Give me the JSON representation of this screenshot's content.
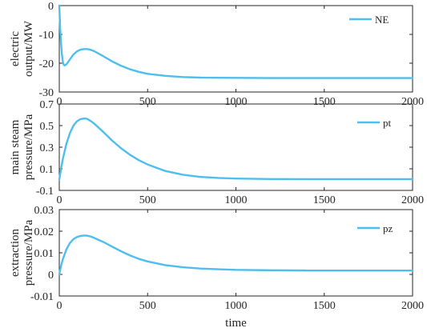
{
  "chart_data": [
    {
      "type": "line",
      "ylabel_lines": [
        "electric",
        "output/MW"
      ],
      "xlim": [
        0,
        2000
      ],
      "ylim": [
        -30,
        0
      ],
      "xticks": [
        0,
        500,
        1000,
        1500,
        2000
      ],
      "yticks": [
        -30,
        -20,
        -10,
        0
      ],
      "xtick_labels": [
        "0",
        "500",
        "1000",
        "1500",
        "2000"
      ],
      "ytick_labels": [
        "-30",
        "-20",
        "-10",
        "0"
      ],
      "legend_position": "top-right",
      "series": [
        {
          "name": "NE",
          "color": "#4DBEEE",
          "x": [
            0,
            2,
            5,
            10,
            15,
            20,
            25,
            30,
            40,
            50,
            60,
            80,
            100,
            120,
            140,
            160,
            180,
            200,
            250,
            300,
            350,
            400,
            450,
            500,
            600,
            700,
            800,
            900,
            1000,
            1200,
            1400,
            1600,
            1800,
            2000
          ],
          "y": [
            0,
            -3,
            -8,
            -13,
            -17,
            -19.5,
            -20.5,
            -20.8,
            -20.4,
            -19.6,
            -18.7,
            -17,
            -15.9,
            -15.3,
            -15.1,
            -15.1,
            -15.4,
            -15.9,
            -17.6,
            -19.4,
            -20.9,
            -22.1,
            -23,
            -23.7,
            -24.4,
            -24.8,
            -25,
            -25.05,
            -25.1,
            -25.15,
            -25.15,
            -25.15,
            -25.15,
            -25.15
          ]
        }
      ]
    },
    {
      "type": "line",
      "ylabel_lines": [
        "main steam",
        "pressure/MPa"
      ],
      "xlim": [
        0,
        2000
      ],
      "ylim": [
        -0.1,
        0.7
      ],
      "xticks": [
        0,
        500,
        1000,
        1500,
        2000
      ],
      "yticks": [
        -0.1,
        0.1,
        0.3,
        0.5,
        0.7
      ],
      "xtick_labels": [
        "0",
        "500",
        "1000",
        "1500",
        "2000"
      ],
      "ytick_labels": [
        "-0.1",
        "0.1",
        "0.3",
        "0.5",
        "0.7"
      ],
      "legend_position": "top-right",
      "series": [
        {
          "name": "pt",
          "color": "#4DBEEE",
          "x": [
            0,
            10,
            20,
            40,
            60,
            80,
            100,
            120,
            140,
            150,
            160,
            180,
            200,
            250,
            300,
            350,
            400,
            450,
            500,
            600,
            700,
            800,
            900,
            1000,
            1200,
            1400,
            1600,
            1800,
            2000
          ],
          "y": [
            0.0,
            0.1,
            0.19,
            0.33,
            0.43,
            0.5,
            0.54,
            0.56,
            0.565,
            0.565,
            0.56,
            0.54,
            0.515,
            0.44,
            0.36,
            0.29,
            0.23,
            0.18,
            0.14,
            0.08,
            0.045,
            0.025,
            0.015,
            0.01,
            0.005,
            0.004,
            0.004,
            0.004,
            0.004
          ]
        }
      ]
    },
    {
      "type": "line",
      "xlabel": "time",
      "ylabel_lines": [
        "extraction",
        "pressure/MPa"
      ],
      "xlim": [
        0,
        2000
      ],
      "ylim": [
        -0.01,
        0.03
      ],
      "xticks": [
        0,
        500,
        1000,
        1500,
        2000
      ],
      "yticks": [
        -0.01,
        0,
        0.01,
        0.02,
        0.03
      ],
      "xtick_labels": [
        "0",
        "500",
        "1000",
        "1500",
        "2000"
      ],
      "ytick_labels": [
        "-0.01",
        "0",
        "0.01",
        "0.02",
        "0.03"
      ],
      "legend_position": "top-right",
      "series": [
        {
          "name": "pz",
          "color": "#4DBEEE",
          "x": [
            0,
            10,
            20,
            40,
            60,
            80,
            100,
            120,
            140,
            150,
            160,
            180,
            200,
            250,
            300,
            350,
            400,
            450,
            500,
            600,
            700,
            800,
            900,
            1000,
            1200,
            1400,
            1600,
            1800,
            2000
          ],
          "y": [
            0.0,
            0.004,
            0.007,
            0.0115,
            0.0145,
            0.0163,
            0.0173,
            0.0178,
            0.018,
            0.018,
            0.0179,
            0.0175,
            0.0168,
            0.015,
            0.0128,
            0.0107,
            0.0088,
            0.0072,
            0.006,
            0.0043,
            0.0033,
            0.0027,
            0.0024,
            0.0021,
            0.0019,
            0.0018,
            0.0018,
            0.0018,
            0.0018
          ]
        }
      ]
    }
  ]
}
